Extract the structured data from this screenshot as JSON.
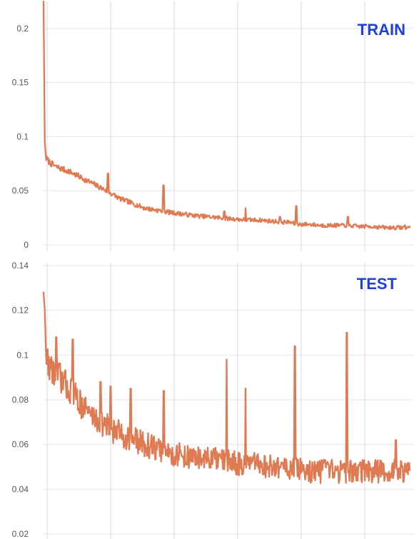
{
  "colors": {
    "series": "#e07a52",
    "badge": "#1f3fe0",
    "grid": "#e3e6ee"
  },
  "chart_data": [
    {
      "type": "line",
      "label": "TRAIN",
      "ylim": [
        0,
        0.225
      ],
      "y_ticks": [
        "0",
        "0.05",
        "0.1",
        "0.15",
        "0.2"
      ],
      "y_tick_values": [
        0,
        0.05,
        0.1,
        0.15,
        0.2
      ],
      "grid": true,
      "x": [
        0,
        0.5,
        1,
        2,
        5,
        10,
        20,
        30,
        40,
        50,
        60,
        80,
        100,
        120,
        140,
        150,
        160,
        170,
        180,
        190,
        195,
        200,
        210,
        220,
        230,
        240,
        250,
        260,
        270,
        280,
        290
      ],
      "series": [
        {
          "values": [
            0.225,
            0.16,
            0.095,
            0.08,
            0.076,
            0.072,
            0.068,
            0.062,
            0.056,
            0.05,
            0.043,
            0.034,
            0.03,
            0.027,
            0.025,
            0.024,
            0.023,
            0.023,
            0.022,
            0.021,
            0.021,
            0.019,
            0.019,
            0.018,
            0.018,
            0.018,
            0.017,
            0.017,
            0.016,
            0.016,
            0.016
          ],
          "noise": 0.003,
          "spikes": [
            [
              51,
              0.066
            ],
            [
              95,
              0.055
            ],
            [
              143,
              0.031
            ],
            [
              160,
              0.034
            ],
            [
              187,
              0.026
            ],
            [
              200,
              0.036
            ],
            [
              241,
              0.026
            ],
            [
              286,
              0.018
            ]
          ]
        }
      ]
    },
    {
      "type": "line",
      "label": "TEST",
      "ylim": [
        0.02,
        0.14
      ],
      "y_ticks": [
        "0.02",
        "0.04",
        "0.06",
        "0.08",
        "0.1",
        "0.12",
        "0.14"
      ],
      "y_tick_values": [
        0.02,
        0.04,
        0.06,
        0.08,
        0.1,
        0.12,
        0.14
      ],
      "grid": true,
      "x": [
        0,
        1,
        2,
        5,
        10,
        20,
        30,
        40,
        50,
        60,
        80,
        100,
        120,
        140,
        150,
        160,
        170,
        180,
        190,
        200,
        210,
        220,
        230,
        240,
        250,
        260,
        270,
        280,
        290
      ],
      "series": [
        {
          "values": [
            0.128,
            0.12,
            0.1,
            0.095,
            0.092,
            0.085,
            0.078,
            0.072,
            0.068,
            0.065,
            0.06,
            0.056,
            0.054,
            0.053,
            0.052,
            0.051,
            0.051,
            0.05,
            0.05,
            0.049,
            0.048,
            0.048,
            0.048,
            0.048,
            0.048,
            0.048,
            0.048,
            0.048,
            0.048
          ],
          "noise": 0.007,
          "spikes": [
            [
              10,
              0.108
            ],
            [
              23,
              0.107
            ],
            [
              45,
              0.088
            ],
            [
              53,
              0.086
            ],
            [
              69,
              0.085
            ],
            [
              95,
              0.084
            ],
            [
              145,
              0.098
            ],
            [
              160,
              0.085
            ],
            [
              199,
              0.104
            ],
            [
              240,
              0.11
            ],
            [
              279,
              0.062
            ]
          ]
        }
      ]
    }
  ]
}
